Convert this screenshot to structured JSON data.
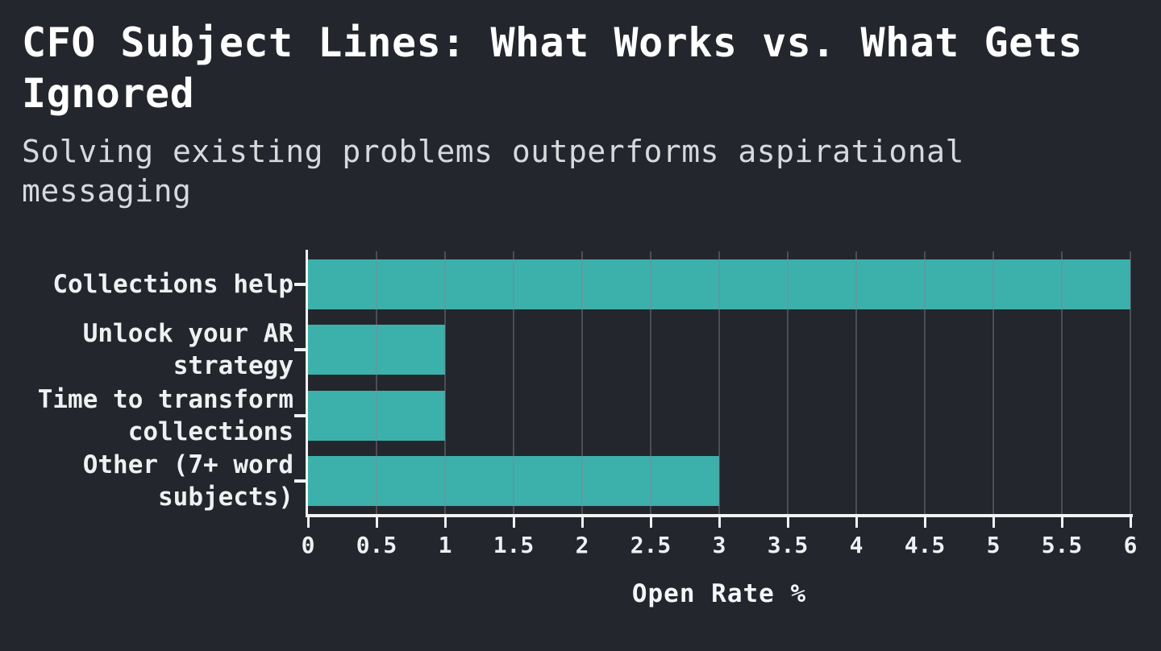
{
  "header": {
    "title": "CFO Subject Lines: What Works vs. What Gets Ignored",
    "subtitle": "Solving existing problems outperforms aspirational messaging"
  },
  "chart_data": {
    "type": "bar",
    "orientation": "horizontal",
    "title": "CFO Subject Lines: What Works vs. What Gets Ignored",
    "subtitle": "Solving existing problems outperforms aspirational messaging",
    "categories": [
      "Collections help",
      "Unlock your AR strategy",
      "Time to transform collections",
      "Other (7+ word subjects)"
    ],
    "values": [
      6,
      1,
      1,
      3
    ],
    "xlabel": "Open Rate %",
    "ylabel": "",
    "xlim": [
      0,
      6
    ],
    "xticks": [
      0,
      0.5,
      1,
      1.5,
      2,
      2.5,
      3,
      3.5,
      4,
      4.5,
      5,
      5.5,
      6
    ],
    "grid": true,
    "legend": "none",
    "colors": {
      "background": "#24262d",
      "bar": "#3cb0ab",
      "grid": "rgba(128,134,146,0.42)",
      "axis": "#f2f3f5",
      "title_text": "#ffffff",
      "subtitle_text": "#d7d9dc",
      "tick_text": "#eef0f2"
    }
  }
}
